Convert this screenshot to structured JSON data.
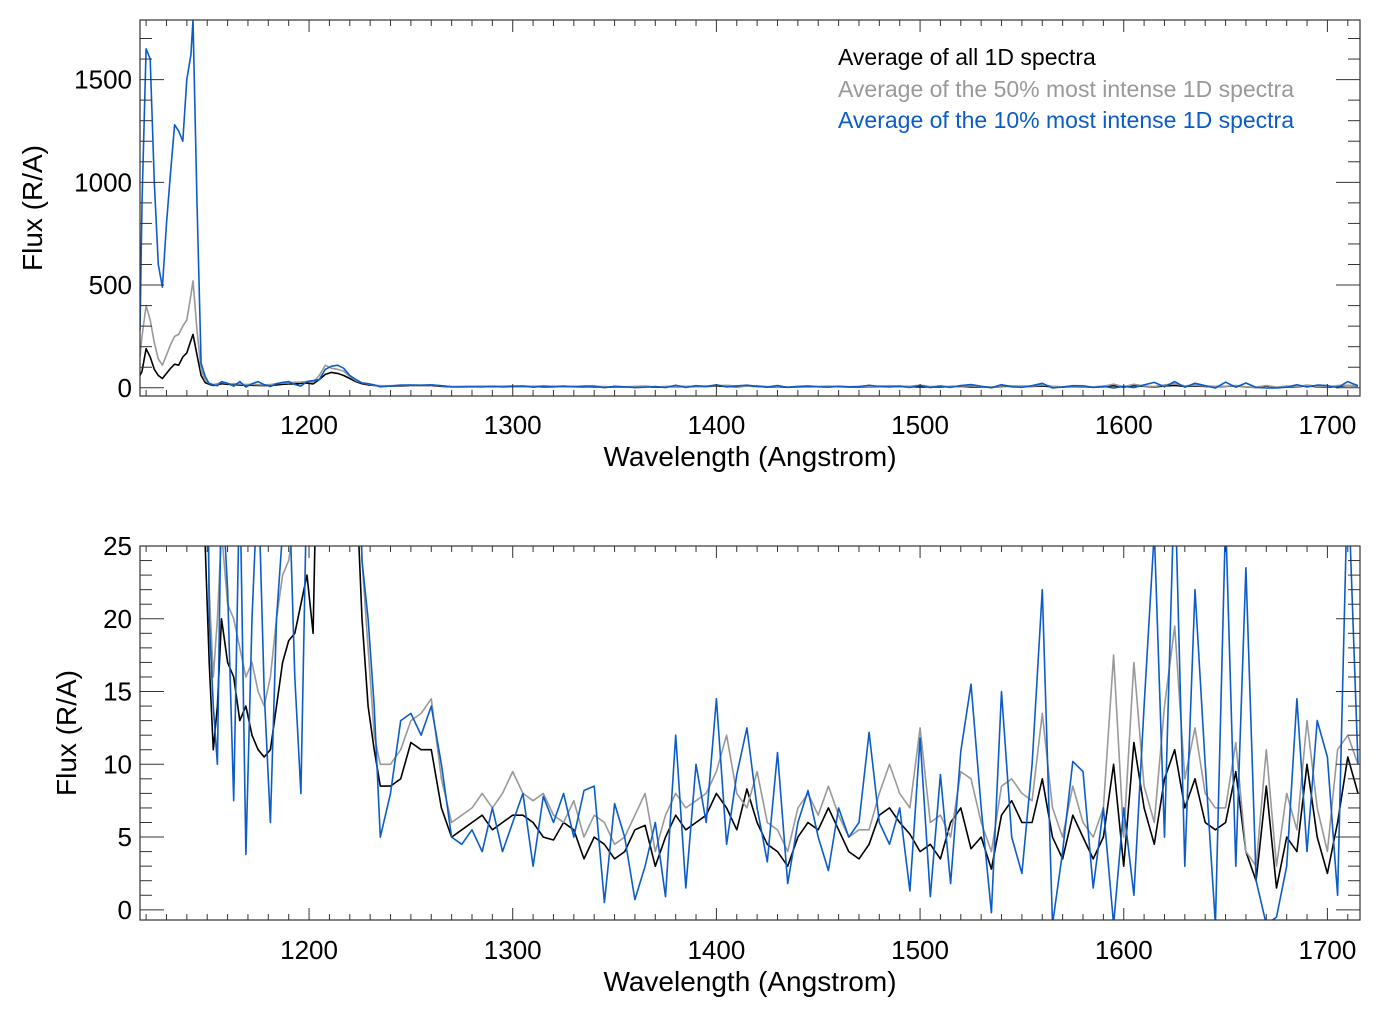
{
  "chart_data": [
    {
      "type": "line",
      "title": "",
      "xlabel": "Wavelength (Angstrom)",
      "ylabel": "Flux (R/A)",
      "xlim": [
        1117,
        1716
      ],
      "ylim": [
        -40,
        1790
      ],
      "xticks": [
        1200,
        1300,
        1400,
        1500,
        1600,
        1700
      ],
      "yticks": [
        0,
        500,
        1000,
        1500
      ],
      "x_minor_step": 10,
      "y_minor_step": 100,
      "legend_placement": "top-right",
      "series_ref": "spectra"
    },
    {
      "type": "line",
      "title": "",
      "xlabel": "Wavelength (Angstrom)",
      "ylabel": "Flux (R/A)",
      "xlim": [
        1117,
        1716
      ],
      "ylim": [
        -0.7,
        25
      ],
      "xticks": [
        1200,
        1300,
        1400,
        1500,
        1600,
        1700
      ],
      "yticks": [
        0,
        5,
        10,
        15,
        20,
        25
      ],
      "x_minor_step": 10,
      "y_minor_step": 1,
      "legend_placement": "none",
      "series_ref": "spectra"
    }
  ],
  "spectra": {
    "x": [
      1117,
      1118,
      1120,
      1122,
      1124,
      1126,
      1128,
      1130,
      1132,
      1134,
      1136,
      1138,
      1140,
      1142,
      1143,
      1145,
      1147,
      1149,
      1151,
      1153,
      1155,
      1157,
      1160,
      1163,
      1166,
      1169,
      1172,
      1175,
      1178,
      1181,
      1184,
      1187,
      1190,
      1193,
      1196,
      1199,
      1202,
      1205,
      1208,
      1211,
      1214,
      1217,
      1220,
      1223,
      1226,
      1229,
      1232,
      1235,
      1240,
      1245,
      1250,
      1255,
      1260,
      1265,
      1270,
      1275,
      1280,
      1285,
      1290,
      1295,
      1300,
      1305,
      1310,
      1315,
      1320,
      1325,
      1330,
      1335,
      1340,
      1345,
      1350,
      1355,
      1360,
      1365,
      1370,
      1375,
      1380,
      1385,
      1390,
      1395,
      1400,
      1405,
      1410,
      1415,
      1420,
      1425,
      1430,
      1435,
      1440,
      1445,
      1450,
      1455,
      1460,
      1465,
      1470,
      1475,
      1480,
      1485,
      1490,
      1495,
      1500,
      1505,
      1510,
      1515,
      1520,
      1525,
      1530,
      1535,
      1540,
      1545,
      1550,
      1555,
      1560,
      1565,
      1570,
      1575,
      1580,
      1585,
      1590,
      1595,
      1600,
      1605,
      1610,
      1615,
      1620,
      1625,
      1630,
      1635,
      1640,
      1645,
      1650,
      1655,
      1660,
      1665,
      1670,
      1675,
      1680,
      1685,
      1690,
      1695,
      1700,
      1705,
      1710,
      1715
    ],
    "series": [
      {
        "name": "Average of all 1D spectra",
        "color": "#000000",
        "values": [
          60,
          80,
          190,
          150,
          90,
          60,
          45,
          70,
          95,
          115,
          110,
          150,
          170,
          230,
          260,
          160,
          60,
          25,
          17,
          11,
          14,
          20,
          17,
          16,
          13,
          14,
          12,
          11,
          10.5,
          11,
          14,
          17,
          18.5,
          19,
          21,
          23,
          19,
          40,
          65,
          75,
          70,
          60,
          45,
          30,
          20,
          14,
          11,
          8.5,
          8.5,
          9,
          11.5,
          11,
          11,
          7,
          5,
          5.5,
          6,
          6.5,
          5.5,
          6,
          6.5,
          6.5,
          6,
          5,
          4.8,
          6,
          5.5,
          3.5,
          5,
          4.5,
          3.5,
          4,
          5.5,
          5.8,
          3,
          5,
          6.5,
          5.5,
          6,
          6.5,
          8,
          7,
          5.5,
          8.3,
          6,
          4.5,
          4,
          3,
          5,
          6,
          5.5,
          7,
          5.5,
          4,
          3.5,
          4.5,
          6.5,
          7,
          6,
          5.2,
          4,
          4.5,
          3.5,
          6,
          7,
          4.2,
          5,
          2.8,
          6.5,
          7.5,
          6,
          6,
          9,
          5,
          3.5,
          6.5,
          5,
          3.5,
          5,
          10,
          3,
          11.5,
          7,
          4.5,
          9,
          11,
          7,
          9,
          6,
          5.5,
          6,
          9.5,
          4,
          2,
          8.5,
          1.5,
          5,
          4,
          10,
          5,
          2.5,
          6,
          10.5,
          8
        ]
      },
      {
        "name": "Average of the 50% most intense 1D spectra",
        "color": "#999999",
        "values": [
          150,
          250,
          400,
          330,
          220,
          140,
          110,
          160,
          210,
          250,
          260,
          300,
          330,
          450,
          520,
          280,
          90,
          35,
          22,
          16,
          20,
          26,
          21,
          20,
          18,
          16,
          17,
          15,
          14,
          16,
          20,
          23,
          24,
          27,
          28,
          30,
          26,
          60,
          110,
          95,
          90,
          80,
          55,
          35,
          24,
          18,
          12,
          10,
          10,
          11,
          13,
          13.5,
          14.5,
          9,
          6,
          6.5,
          7,
          8,
          7,
          8,
          9.5,
          8,
          7.5,
          8,
          6.5,
          6,
          7.5,
          5,
          6.5,
          6,
          4.5,
          5,
          6.5,
          8,
          4,
          6.5,
          8,
          7,
          7.5,
          8,
          9.5,
          12,
          8,
          7,
          9.5,
          6,
          5.5,
          4,
          7,
          8,
          6.5,
          8.5,
          6.5,
          5,
          5.5,
          5.5,
          8,
          10,
          8,
          7,
          12.5,
          6,
          6.5,
          5,
          9.5,
          9,
          6,
          4,
          8.5,
          9,
          8,
          7.5,
          13.5,
          7,
          5,
          8.5,
          6,
          5,
          7,
          17.5,
          5,
          17,
          8.5,
          6,
          14,
          19.5,
          9,
          12.5,
          8,
          7,
          7,
          11.5,
          4,
          3,
          11,
          3,
          8,
          5.5,
          13,
          7,
          4,
          11,
          12,
          10
        ]
      },
      {
        "name": "Average of the 10% most intense 1D spectra",
        "color": "#0b5cc9",
        "values": [
          280,
          900,
          1650,
          1600,
          1000,
          600,
          490,
          800,
          1050,
          1280,
          1250,
          1200,
          1500,
          1620,
          1790,
          900,
          120,
          55,
          20,
          14,
          10,
          30,
          22,
          7.5,
          30,
          3.8,
          20,
          30,
          15,
          6,
          20,
          26,
          30,
          16,
          8,
          30,
          35,
          40,
          90,
          105,
          110,
          95,
          60,
          40,
          24,
          20,
          14,
          5,
          8,
          13,
          13.5,
          12,
          14,
          10,
          5,
          4.5,
          5.5,
          4,
          7,
          4,
          6,
          8,
          3,
          7.8,
          6,
          8,
          5,
          8.2,
          8.5,
          0.5,
          7.3,
          5,
          0.7,
          3,
          6,
          0.9,
          12,
          1.5,
          10,
          6,
          14.5,
          4.5,
          9.3,
          12.5,
          7,
          3.3,
          10.8,
          1.8,
          6,
          8.2,
          5,
          2.7,
          7,
          5,
          6,
          12.2,
          6,
          4.5,
          7,
          1.3,
          11.8,
          0.9,
          9.3,
          1.8,
          10.9,
          15.5,
          7,
          -0.2,
          15,
          5,
          2.5,
          10,
          22,
          -1,
          4,
          10.2,
          9.5,
          1.5,
          7,
          -1,
          7,
          1,
          14,
          26,
          5,
          30,
          3,
          22,
          10,
          -1,
          27,
          3,
          23.5,
          2,
          -1,
          -0.5,
          3,
          14.5,
          4,
          13,
          10.5,
          1,
          30,
          10
        ]
      }
    ]
  }
}
